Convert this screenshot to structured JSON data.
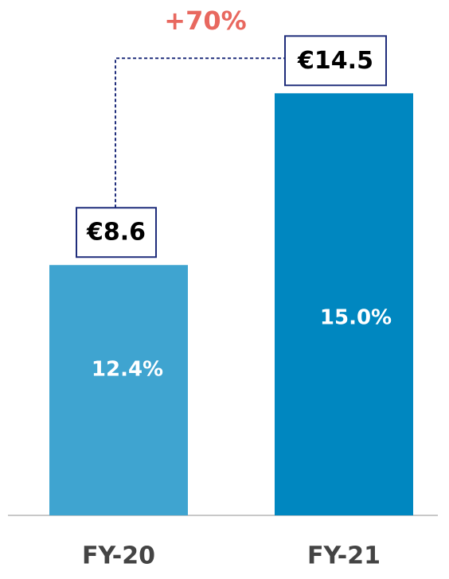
{
  "chart_data": {
    "type": "bar",
    "categories": [
      "FY-20",
      "FY-21"
    ],
    "values": [
      8.6,
      14.5
    ],
    "value_labels": [
      "€8.6",
      "€14.5"
    ],
    "inner_labels": [
      "12.4%",
      "15.0%"
    ],
    "colors": [
      "#3fa4d0",
      "#0087c0"
    ],
    "annotation": "+70%"
  }
}
